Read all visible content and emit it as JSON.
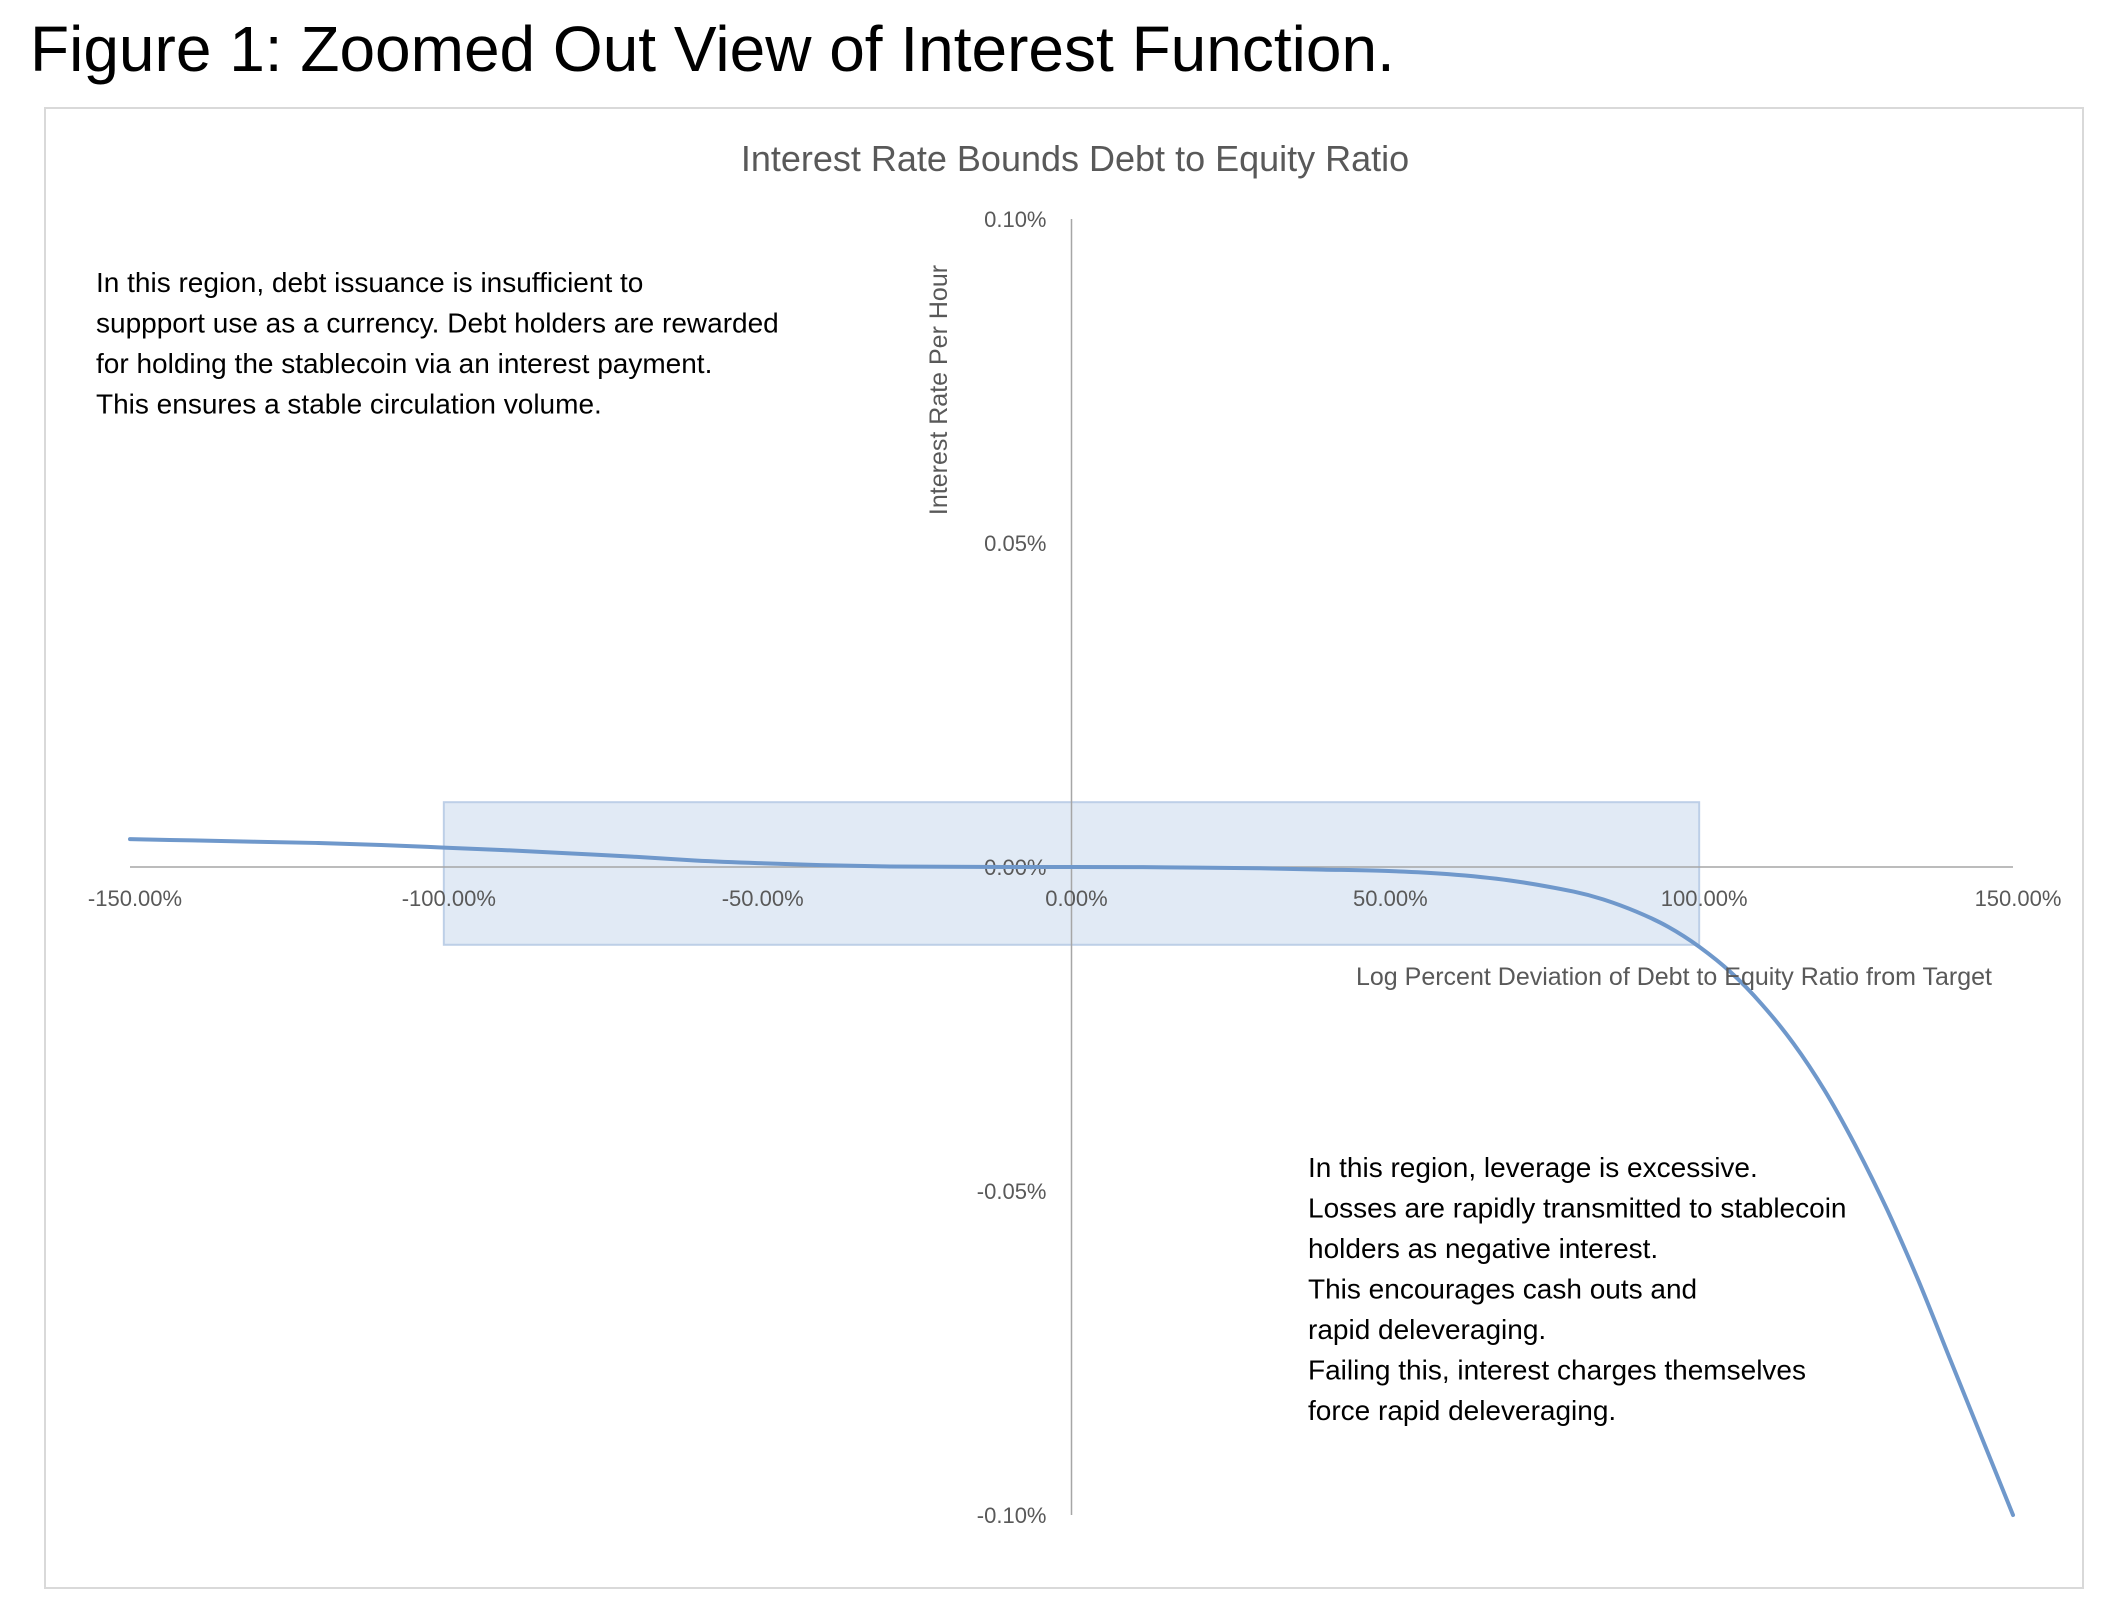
{
  "figure_title": "Figure 1: Zoomed Out View of Interest Function.",
  "colors": {
    "series_line": "#6f98cb",
    "band_fill": "#dae5f3",
    "band_stroke": "#bdcfe7",
    "axis": "#a6a6a6",
    "frame": "#d9d9d9",
    "tick_text": "#595959",
    "annotation_text": "#000000"
  },
  "chart_data": {
    "type": "line",
    "title": "Interest Rate Bounds Debt to Equity Ratio",
    "xlabel": "Log Percent Deviation of Debt to Equity Ratio from Target",
    "ylabel": "Interest Rate Per Hour",
    "xlim": [
      -1.5,
      1.5
    ],
    "ylim": [
      -0.001,
      0.001
    ],
    "x_ticks": [
      {
        "value": -1.5,
        "label": "-150.00%"
      },
      {
        "value": -1.0,
        "label": "-100.00%"
      },
      {
        "value": -0.5,
        "label": "-50.00%"
      },
      {
        "value": 0.0,
        "label": "0.00%"
      },
      {
        "value": 0.5,
        "label": "50.00%"
      },
      {
        "value": 1.0,
        "label": "100.00%"
      },
      {
        "value": 1.5,
        "label": "150.00%"
      }
    ],
    "y_ticks": [
      {
        "value": 0.001,
        "label": "0.10%"
      },
      {
        "value": 0.0005,
        "label": "0.05%"
      },
      {
        "value": 0.0,
        "label": "0.00%"
      },
      {
        "value": -0.0005,
        "label": "-0.05%"
      },
      {
        "value": -0.001,
        "label": "-0.10%"
      }
    ],
    "grid": false,
    "legend": "none",
    "series": [
      {
        "x": [
          -1.5,
          -1.4,
          -1.3,
          -1.2,
          -1.1,
          -1.0,
          -0.9,
          -0.8,
          -0.7,
          -0.6,
          -0.5,
          -0.4,
          -0.3,
          -0.2,
          -0.1,
          0.0,
          0.1,
          0.2,
          0.3,
          0.4,
          0.5,
          0.6,
          0.7,
          0.8,
          0.85,
          0.9,
          0.95,
          1.0,
          1.05,
          1.1,
          1.15,
          1.2,
          1.25,
          1.3,
          1.35,
          1.4,
          1.45,
          1.5
        ],
        "y": [
          4.3e-05,
          4.1e-05,
          3.9e-05,
          3.7e-05,
          3.4e-05,
          3e-05,
          2.6e-05,
          2.1e-05,
          1.6e-05,
          1e-05,
          6e-06,
          3e-06,
          1e-06,
          3e-07,
          0.0,
          0.0,
          -2e-07,
          -1e-06,
          -2e-06,
          -4e-06,
          -6e-06,
          -1.1e-05,
          -2.1e-05,
          -3.8e-05,
          -5.1e-05,
          -6.9e-05,
          -9.2e-05,
          -0.000123,
          -0.000162,
          -0.000212,
          -0.000272,
          -0.000345,
          -0.000432,
          -0.00053,
          -0.00064,
          -0.00076,
          -0.00088,
          -0.001
        ]
      }
    ],
    "shaded_region": {
      "x": [
        -1.0,
        1.0
      ],
      "y": [
        -0.00012,
        0.0001
      ]
    },
    "annotations": [
      {
        "lines": [
          "In this region, debt issuance is insufficient to",
          "suppport use as a currency. Debt holders are rewarded",
          "for holding the stablecoin via an interest payment.",
          "This ensures a stable circulation volume."
        ]
      },
      {
        "lines": [
          "In this region, leverage is excessive.",
          "Losses are rapidly transmitted to stablecoin",
          "holders as negative interest.",
          "This encourages cash outs and",
          "rapid deleveraging.",
          "Failing this, interest charges themselves",
          "force rapid deleveraging."
        ]
      }
    ]
  }
}
